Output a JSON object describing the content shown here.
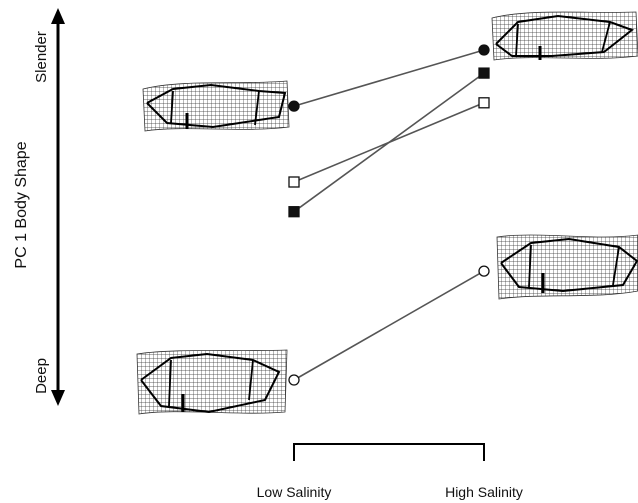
{
  "chart_data": {
    "type": "line",
    "title": "",
    "ylabel": "PC 1 Body Shape",
    "y_end_labels": {
      "top": "Slender",
      "bottom": "Deep"
    },
    "categories": [
      "Low Salinity",
      "High Salinity"
    ],
    "ylim": [
      0,
      1
    ],
    "grid": false,
    "legend": "none",
    "series": [
      {
        "marker": "circle-filled",
        "values": [
          0.83,
          1.0
        ]
      },
      {
        "marker": "square-filled",
        "values": [
          0.51,
          0.93
        ]
      },
      {
        "marker": "square-open",
        "values": [
          0.6,
          0.84
        ]
      },
      {
        "marker": "circle-open",
        "values": [
          0.0,
          0.33
        ]
      }
    ],
    "colors": {
      "line": "#555555",
      "marker": "#111111",
      "axis": "#000000"
    },
    "shape_grids": [
      {
        "name": "shape-grid-low-slender",
        "shape": "slender"
      },
      {
        "name": "shape-grid-high-slender",
        "shape": "slender"
      },
      {
        "name": "shape-grid-high-deep",
        "shape": "deep"
      },
      {
        "name": "shape-grid-low-deep",
        "shape": "deep"
      }
    ]
  }
}
